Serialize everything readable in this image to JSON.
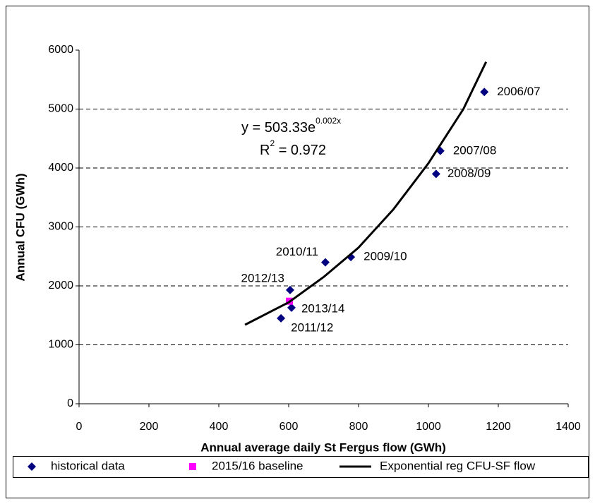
{
  "chart_data": {
    "type": "scatter",
    "xlabel": "Annual average daily St Fergus flow (GWh)",
    "ylabel": "Annual CFU (GWh)",
    "xlim": [
      0,
      1400
    ],
    "xticks": [
      0,
      200,
      400,
      600,
      800,
      1000,
      1200,
      1400
    ],
    "ylim": [
      0,
      6000
    ],
    "yticks": [
      0,
      1000,
      2000,
      3000,
      4000,
      5000,
      6000
    ],
    "grid": true,
    "legend": "bottom",
    "series": [
      {
        "name": "historical data",
        "color": "#000080",
        "marker": "diamond",
        "x": [
          1160,
          1034,
          1022,
          778,
          705,
          604,
          608,
          578
        ],
        "values": [
          5290,
          4290,
          3900,
          2490,
          2400,
          1930,
          1630,
          1450
        ],
        "labels": [
          "2006/07",
          "2007/08",
          "2008/09",
          "2009/10",
          "2010/11",
          "2012/13",
          "2013/14",
          "2011/12"
        ]
      },
      {
        "name": "2015/16 baseline",
        "color": "#ff00ff",
        "marker": "square",
        "x": [
          602
        ],
        "values": [
          1740
        ]
      },
      {
        "name": "Exponential reg CFU-SF flow",
        "color": "#000000",
        "marker": "line",
        "x": [
          475,
          600,
          700,
          800,
          900,
          1000,
          1100,
          1165
        ],
        "values": [
          1340,
          1720,
          2150,
          2650,
          3300,
          4080,
          5000,
          5800
        ]
      }
    ],
    "equation": {
      "base": "y = 503.33e",
      "exponent": "0.002x"
    },
    "r_squared": {
      "base": "R",
      "exponent": "2",
      "rest": " = 0.972"
    }
  }
}
